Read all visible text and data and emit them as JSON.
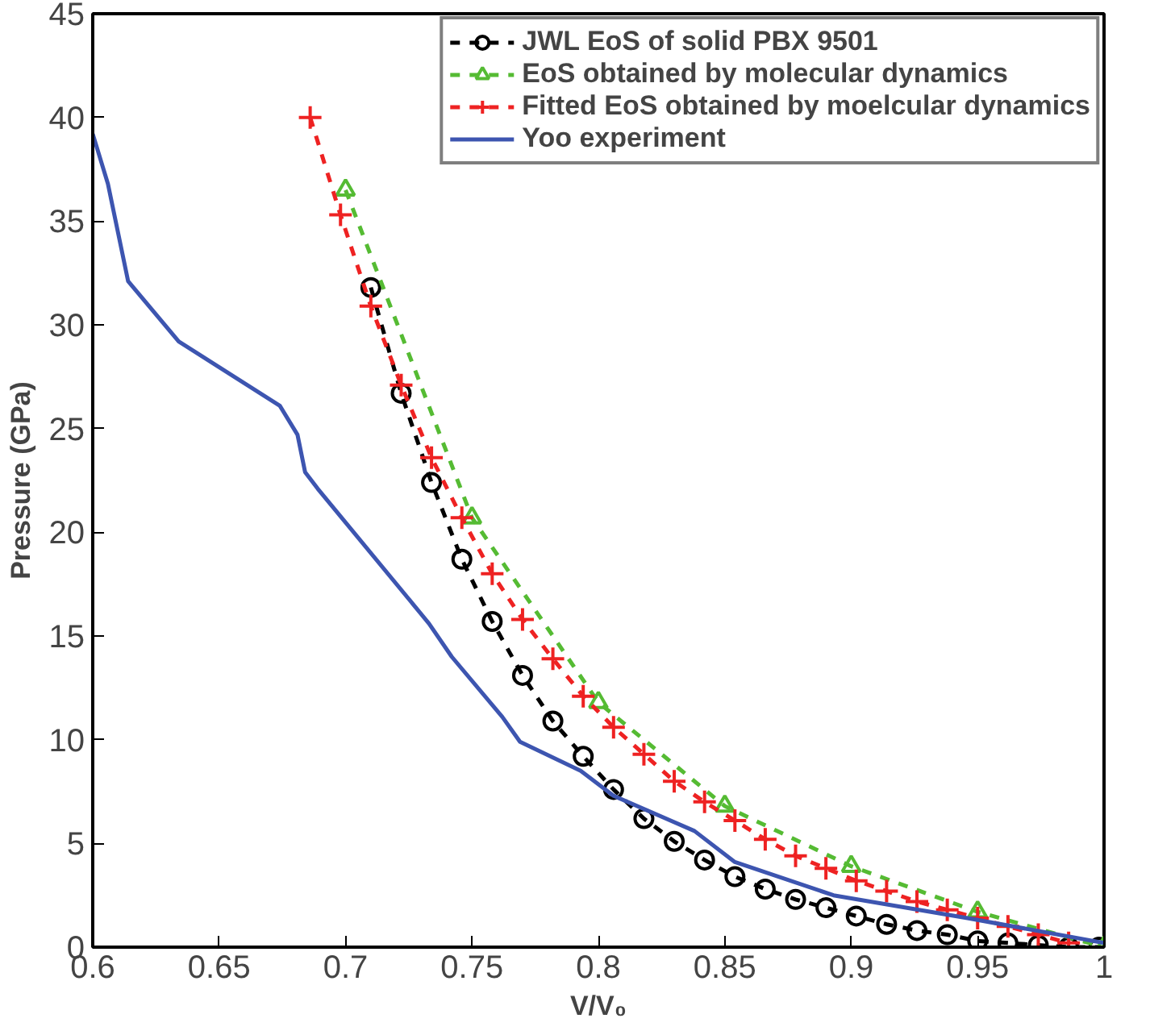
{
  "chart_data": {
    "type": "line",
    "xlabel": "V/V₀",
    "ylabel": "Pressure (GPa)",
    "xlim": [
      0.6,
      1.0
    ],
    "ylim": [
      0,
      45
    ],
    "xticks": [
      0.6,
      0.65,
      0.7,
      0.75,
      0.8,
      0.85,
      0.9,
      0.95,
      1
    ],
    "yticks": [
      0,
      5,
      10,
      15,
      20,
      25,
      30,
      35,
      40,
      45
    ],
    "grid": false,
    "legend": "top right",
    "series": [
      {
        "name": "JWL EoS of solid PBX 9501",
        "color": "#000000",
        "marker": "circle",
        "line_style": "dashed",
        "x": [
          0.71,
          0.722,
          0.734,
          0.746,
          0.758,
          0.77,
          0.782,
          0.794,
          0.806,
          0.818,
          0.83,
          0.842,
          0.854,
          0.866,
          0.878,
          0.89,
          0.902,
          0.914,
          0.926,
          0.938,
          0.95,
          0.962,
          0.974,
          0.986,
          0.998
        ],
        "values": [
          31.8,
          26.7,
          22.4,
          18.7,
          15.7,
          13.1,
          10.9,
          9.2,
          7.6,
          6.2,
          5.1,
          4.2,
          3.4,
          2.8,
          2.3,
          1.9,
          1.5,
          1.1,
          0.8,
          0.6,
          0.3,
          0.2,
          0.1,
          0.0,
          0.0
        ]
      },
      {
        "name": "EoS obtained by molecular dynamics",
        "color": "#55bb33",
        "marker": "triangle",
        "line_style": "dashed",
        "x": [
          0.7,
          0.75,
          0.8,
          0.85,
          0.9,
          0.95,
          1.0
        ],
        "values": [
          36.5,
          20.7,
          11.8,
          6.8,
          3.9,
          1.7,
          0.0
        ]
      },
      {
        "name": "Fitted EoS obtained by moelcular dynamics",
        "color": "#ee2222",
        "marker": "cross",
        "line_style": "dashed",
        "x": [
          0.686,
          0.698,
          0.71,
          0.722,
          0.734,
          0.746,
          0.758,
          0.77,
          0.782,
          0.794,
          0.806,
          0.818,
          0.83,
          0.842,
          0.854,
          0.866,
          0.878,
          0.89,
          0.902,
          0.914,
          0.926,
          0.938,
          0.95,
          0.962,
          0.974,
          0.986
        ],
        "values": [
          40.0,
          35.3,
          30.9,
          27.1,
          23.6,
          20.7,
          18.0,
          15.8,
          13.9,
          12.1,
          10.6,
          9.3,
          8.0,
          7.0,
          6.1,
          5.2,
          4.4,
          3.8,
          3.2,
          2.7,
          2.2,
          1.8,
          1.4,
          1.0,
          0.6,
          0.2
        ]
      },
      {
        "name": "Yoo experiment",
        "color": "#3d55b0",
        "marker": "none",
        "line_style": "solid",
        "x": [
          0.6,
          0.606,
          0.614,
          0.634,
          0.674,
          0.681,
          0.684,
          0.689,
          0.733,
          0.742,
          0.762,
          0.769,
          0.793,
          0.806,
          0.838,
          0.854,
          0.893,
          0.946,
          1.0
        ],
        "values": [
          39.2,
          36.8,
          32.1,
          29.2,
          26.1,
          24.7,
          22.9,
          22.1,
          15.6,
          14.0,
          11.1,
          9.9,
          8.5,
          7.3,
          5.6,
          4.1,
          2.5,
          1.4,
          0.2
        ]
      }
    ]
  }
}
